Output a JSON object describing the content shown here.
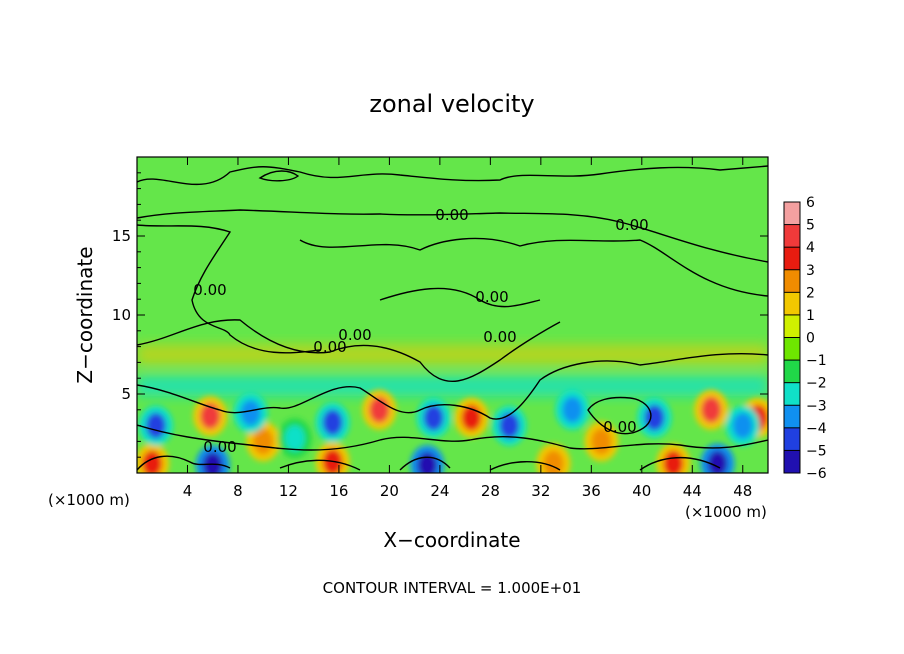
{
  "chart_data": {
    "type": "heatmap",
    "title": "zonal velocity",
    "xlabel": "X−coordinate",
    "ylabel": "Z−coordinate",
    "x_unit_left": "(×1000 m)",
    "x_unit_right": "(×1000 m)",
    "xlim": [
      0,
      50
    ],
    "ylim": [
      0,
      20
    ],
    "x_ticks": [
      4,
      8,
      12,
      16,
      20,
      24,
      28,
      32,
      36,
      40,
      44,
      48
    ],
    "y_ticks": [
      5,
      10,
      15
    ],
    "footer": "CONTOUR INTERVAL = 1.000E+01",
    "contour_labels": [
      "0.00",
      "0.00",
      "0.00",
      "0.00",
      "0.00",
      "0.00",
      "0.00",
      "0.00",
      "0.00"
    ],
    "colorbar": {
      "values": [
        6,
        5,
        4,
        3,
        2,
        1,
        0,
        -1,
        -2,
        -3,
        -4,
        -5,
        -6
      ],
      "labels": [
        "6",
        "5",
        "4",
        "3",
        "2",
        "1",
        "0",
        "−1",
        "−2",
        "−3",
        "−4",
        "−5",
        "−6"
      ],
      "colors": [
        "#f4a0a0",
        "#f03a3a",
        "#e81c10",
        "#f08c00",
        "#f2c800",
        "#d0f000",
        "#6ee600",
        "#20d848",
        "#10e0c8",
        "#1090f0",
        "#2040e0",
        "#2010b0",
        "#8010b8"
      ]
    },
    "field": {
      "background": "#64e64a",
      "warm_cells": [
        {
          "x": 5.8,
          "z": 3.6,
          "value": 4.5
        },
        {
          "x": 1.2,
          "z": 0.6,
          "value": 4
        },
        {
          "x": 19.2,
          "z": 4.0,
          "value": 4.5
        },
        {
          "x": 26.5,
          "z": 3.5,
          "value": 4
        },
        {
          "x": 45.5,
          "z": 4.0,
          "value": 4.5
        },
        {
          "x": 36.8,
          "z": 2.0,
          "value": 3
        },
        {
          "x": 15.5,
          "z": 0.7,
          "value": 4
        },
        {
          "x": 33,
          "z": 0.6,
          "value": 3
        },
        {
          "x": 42.5,
          "z": 0.6,
          "value": 4
        },
        {
          "x": 49.2,
          "z": 3.5,
          "value": 3.5
        },
        {
          "x": 10,
          "z": 2.0,
          "value": 3
        }
      ],
      "cold_cells": [
        {
          "x": 1.5,
          "z": 3.0,
          "value": -4
        },
        {
          "x": 9,
          "z": 3.8,
          "value": -3
        },
        {
          "x": 15.5,
          "z": 3.2,
          "value": -4.5
        },
        {
          "x": 23.5,
          "z": 3.5,
          "value": -4.5
        },
        {
          "x": 29.5,
          "z": 3.0,
          "value": -4
        },
        {
          "x": 34.5,
          "z": 4.0,
          "value": -3.5
        },
        {
          "x": 41,
          "z": 3.5,
          "value": -4
        },
        {
          "x": 48,
          "z": 3.0,
          "value": -3
        },
        {
          "x": 6,
          "z": 0.5,
          "value": -5
        },
        {
          "x": 23,
          "z": 0.5,
          "value": -5
        },
        {
          "x": 46,
          "z": 0.6,
          "value": -5
        },
        {
          "x": 12.5,
          "z": 2.2,
          "value": -2.5
        }
      ],
      "cyan_band": {
        "z": 5.5,
        "value": -2
      },
      "yellow_band": {
        "z": 7.5,
        "value": 1.5
      }
    }
  }
}
